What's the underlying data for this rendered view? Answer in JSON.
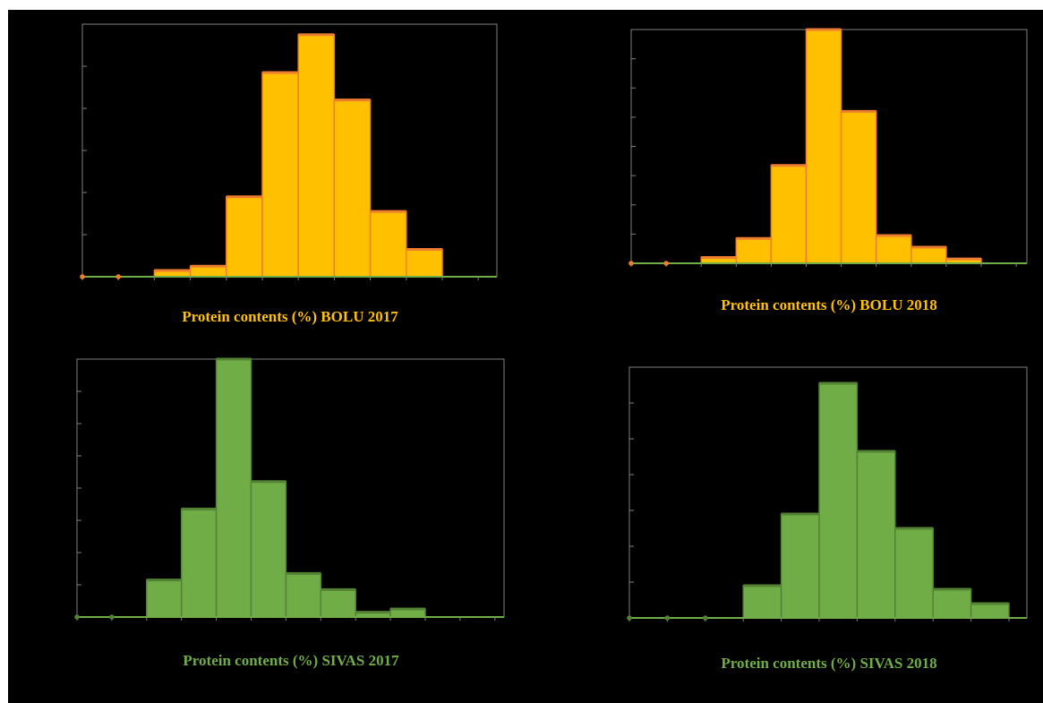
{
  "colors": {
    "background": "#000000",
    "bolu_fill": "#FFC000",
    "bolu_edge": "#ED7D31",
    "sivas_fill": "#70AD47",
    "sivas_edge": "#548235",
    "frame": "#7F7F7F",
    "baseline": "#70AD47"
  },
  "chart_data": [
    {
      "type": "bar",
      "title": "Protein contents (%) BOLU 2017",
      "title_color": "#FFC000",
      "fill": "#FFC000",
      "edge": "#ED7D31",
      "ylim": [
        0,
        6
      ],
      "y_ticks": 6,
      "values": [
        0,
        0,
        0.15,
        0.25,
        1.9,
        4.85,
        5.75,
        4.2,
        1.55,
        0.65,
        0,
        0,
        0
      ]
    },
    {
      "type": "bar",
      "title": "Protein contents (%) BOLU 2018",
      "title_color": "#FFC000",
      "fill": "#FFC000",
      "edge": "#ED7D31",
      "ylim": [
        0,
        8
      ],
      "y_ticks": 8,
      "values": [
        0,
        0,
        0.2,
        0.85,
        3.35,
        8,
        5.2,
        0.95,
        0.55,
        0.15,
        0,
        0
      ]
    },
    {
      "type": "bar",
      "title": "Protein contents (%) SIVAS 2017",
      "title_color": "#70AD47",
      "fill": "#70AD47",
      "edge": "#548235",
      "ylim": [
        0,
        8
      ],
      "y_ticks": 8,
      "values": [
        0,
        0,
        1.15,
        3.35,
        8,
        4.2,
        1.35,
        0.85,
        0.15,
        0.25,
        0,
        0
      ]
    },
    {
      "type": "bar",
      "title": "Protein contents (%) SIVAS 2018",
      "title_color": "#70AD47",
      "fill": "#70AD47",
      "edge": "#548235",
      "ylim": [
        0,
        7
      ],
      "y_ticks": 7,
      "values": [
        0,
        0,
        0,
        0.9,
        2.9,
        6.55,
        4.65,
        2.5,
        0.8,
        0.4,
        0
      ]
    }
  ]
}
